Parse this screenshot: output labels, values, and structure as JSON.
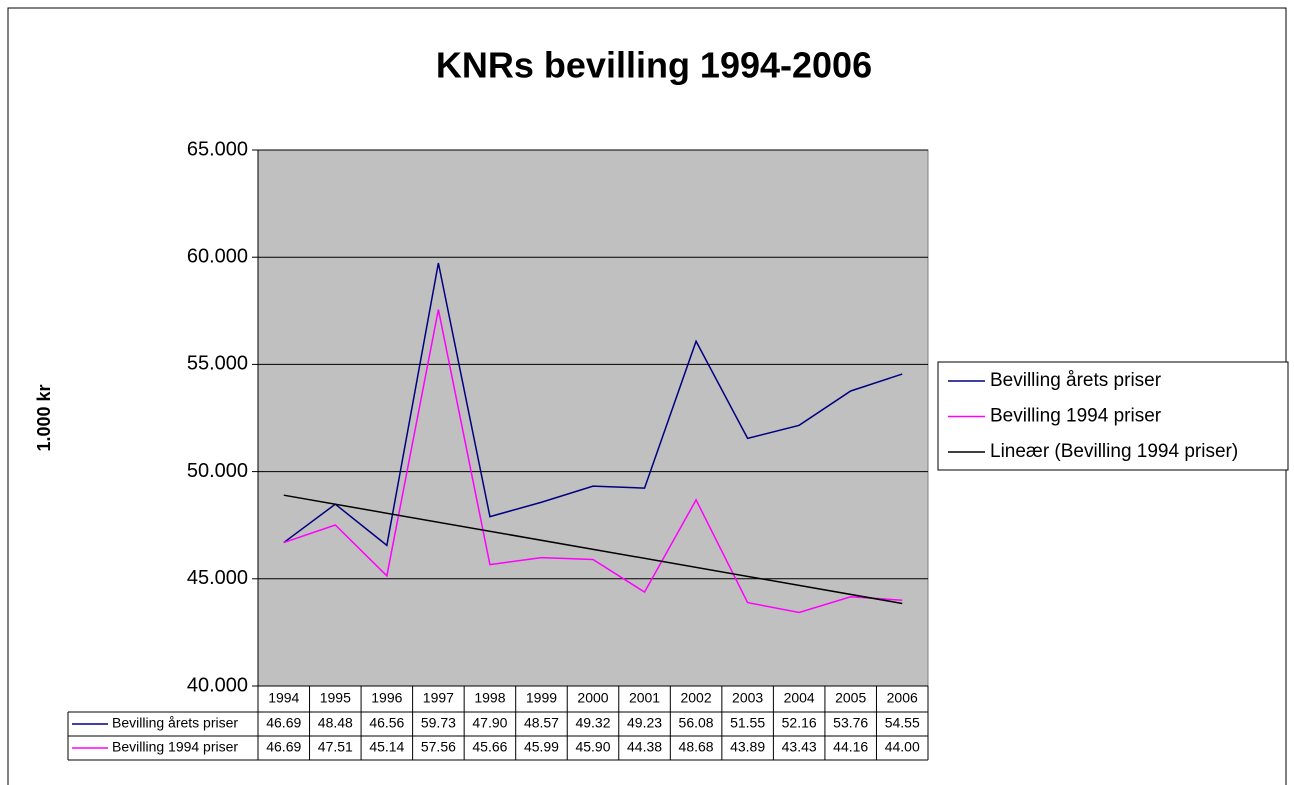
{
  "chart_data": {
    "type": "line",
    "title": "KNRs bevilling 1994-2006",
    "y_label": "1.000 kr",
    "categories": [
      "1994",
      "1995",
      "1996",
      "1997",
      "1998",
      "1999",
      "2000",
      "2001",
      "2002",
      "2003",
      "2004",
      "2005",
      "2006"
    ],
    "series": [
      {
        "name": "Bevilling årets priser",
        "color": "#000080",
        "values": [
          46.69,
          48.48,
          46.56,
          59.73,
          47.9,
          48.57,
          49.32,
          49.23,
          56.08,
          51.55,
          52.16,
          53.76,
          54.55
        ],
        "value_labels": [
          "46.69",
          "48.48",
          "46.56",
          "59.73",
          "47.90",
          "48.57",
          "49.32",
          "49.23",
          "56.08",
          "51.55",
          "52.16",
          "53.76",
          "54.55"
        ]
      },
      {
        "name": "Bevilling 1994 priser",
        "color": "#ff00ff",
        "values": [
          46.69,
          47.51,
          45.14,
          57.56,
          45.66,
          45.99,
          45.9,
          44.38,
          48.68,
          43.89,
          43.43,
          44.16,
          44.0
        ],
        "value_labels": [
          "46.69",
          "47.51",
          "45.14",
          "57.56",
          "45.66",
          "45.99",
          "45.90",
          "44.38",
          "48.68",
          "43.89",
          "43.43",
          "44.16",
          "44.00"
        ]
      }
    ],
    "trendline": {
      "name": "Lineær (Bevilling 1994 priser)",
      "color": "#000000",
      "start": 48.9,
      "end": 43.85
    },
    "ylim": [
      40,
      65
    ],
    "yticks": [
      {
        "value": 40,
        "label": "40.000"
      },
      {
        "value": 45,
        "label": "45.000"
      },
      {
        "value": 50,
        "label": "50.000"
      },
      {
        "value": 55,
        "label": "55.000"
      },
      {
        "value": 60,
        "label": "60.000"
      },
      {
        "value": 65,
        "label": "65.000"
      }
    ],
    "grid": true,
    "legend": "right",
    "plot_background": "#c0c0c0"
  }
}
